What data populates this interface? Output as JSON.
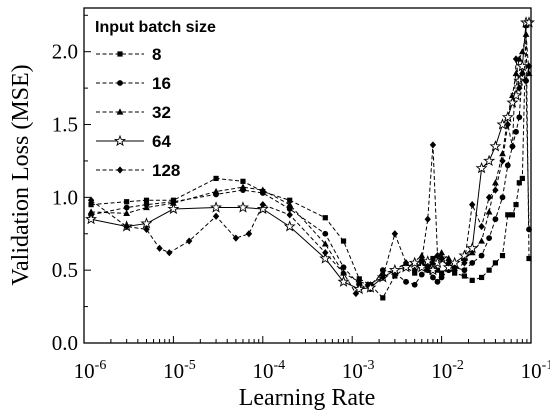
{
  "chart_data": {
    "type": "line",
    "title": "",
    "xlabel": "Learning Rate",
    "ylabel": "Validation Loss (MSE)",
    "xscale": "log",
    "xlim": [
      1e-06,
      0.1
    ],
    "ylim": [
      0.0,
      2.3
    ],
    "xticks": [
      {
        "base": "10",
        "exp": "-6"
      },
      {
        "base": "10",
        "exp": "-5"
      },
      {
        "base": "10",
        "exp": "-4"
      },
      {
        "base": "10",
        "exp": "-3"
      },
      {
        "base": "10",
        "exp": "-2"
      },
      {
        "base": "10",
        "exp": "-1"
      }
    ],
    "yticks": [
      "0.0",
      "0.5",
      "1.0",
      "1.5",
      "2.0"
    ],
    "grid": false,
    "legend": {
      "title": "Input batch size",
      "position": "top-left"
    },
    "series": [
      {
        "name": "8",
        "marker": "square",
        "line": "dashed",
        "x": [
          1.2e-06,
          3e-06,
          5e-06,
          1e-05,
          3e-05,
          6e-05,
          0.0001,
          0.0002,
          0.0005,
          0.0008,
          0.0012,
          0.0016,
          0.0022,
          0.003,
          0.004,
          0.005,
          0.006,
          0.007,
          0.008,
          0.009,
          0.01,
          0.012,
          0.014,
          0.018,
          0.022,
          0.028,
          0.034,
          0.04,
          0.048,
          0.055,
          0.062,
          0.068,
          0.074,
          0.08,
          0.088,
          0.095
        ],
        "y": [
          0.95,
          0.97,
          0.98,
          0.98,
          1.13,
          1.11,
          1.04,
          0.98,
          0.86,
          0.7,
          0.44,
          0.4,
          0.31,
          0.46,
          0.52,
          0.48,
          0.55,
          0.52,
          0.58,
          0.5,
          0.48,
          0.52,
          0.48,
          0.46,
          0.43,
          0.45,
          0.5,
          0.55,
          0.6,
          0.88,
          0.88,
          0.95,
          1.1,
          1.13,
          2.18,
          0.58
        ]
      },
      {
        "name": "16",
        "marker": "circle",
        "line": "dashed",
        "x": [
          1.2e-06,
          3e-06,
          5e-06,
          1e-05,
          3e-05,
          6e-05,
          0.0001,
          0.0002,
          0.0005,
          0.0008,
          0.0012,
          0.0016,
          0.0022,
          0.003,
          0.004,
          0.005,
          0.006,
          0.007,
          0.008,
          0.009,
          0.01,
          0.012,
          0.014,
          0.018,
          0.022,
          0.028,
          0.034,
          0.04,
          0.048,
          0.055,
          0.062,
          0.068,
          0.074,
          0.08,
          0.088,
          0.095
        ],
        "y": [
          0.88,
          0.93,
          0.95,
          0.97,
          1.02,
          1.05,
          1.03,
          0.92,
          0.75,
          0.52,
          0.4,
          0.37,
          0.5,
          0.48,
          0.42,
          0.4,
          0.47,
          0.5,
          0.45,
          0.42,
          0.45,
          0.5,
          0.52,
          0.5,
          0.55,
          0.6,
          0.72,
          0.85,
          1.0,
          1.22,
          1.35,
          1.45,
          1.55,
          1.9,
          1.8,
          0.78
        ]
      },
      {
        "name": "32",
        "marker": "triangle",
        "line": "dashed",
        "x": [
          1.2e-06,
          3e-06,
          5e-06,
          1e-05,
          3e-05,
          6e-05,
          0.0001,
          0.0002,
          0.0005,
          0.0008,
          0.0012,
          0.0016,
          0.0022,
          0.003,
          0.004,
          0.005,
          0.006,
          0.007,
          0.008,
          0.009,
          0.01,
          0.012,
          0.014,
          0.018,
          0.022,
          0.028,
          0.034,
          0.04,
          0.048,
          0.055,
          0.062,
          0.068,
          0.074,
          0.08,
          0.088,
          0.095
        ],
        "y": [
          0.9,
          0.89,
          0.93,
          0.96,
          1.04,
          1.07,
          1.05,
          0.95,
          0.68,
          0.48,
          0.42,
          0.4,
          0.48,
          0.5,
          0.55,
          0.56,
          0.6,
          0.52,
          0.55,
          0.6,
          0.62,
          0.58,
          0.54,
          0.58,
          0.62,
          0.7,
          0.9,
          1.1,
          1.3,
          1.55,
          1.7,
          1.85,
          1.95,
          2.0,
          2.12,
          1.85
        ]
      },
      {
        "name": "64",
        "marker": "star",
        "line": "solid",
        "x": [
          1.2e-06,
          3e-06,
          5e-06,
          1e-05,
          3e-05,
          6e-05,
          0.0001,
          0.0002,
          0.0005,
          0.0008,
          0.0012,
          0.0016,
          0.0022,
          0.003,
          0.004,
          0.005,
          0.006,
          0.007,
          0.008,
          0.009,
          0.01,
          0.012,
          0.014,
          0.018,
          0.022,
          0.028,
          0.034,
          0.04,
          0.048,
          0.055,
          0.062,
          0.068,
          0.074,
          0.08,
          0.088,
          0.095
        ],
        "y": [
          0.85,
          0.8,
          0.82,
          0.92,
          0.93,
          0.93,
          0.92,
          0.8,
          0.58,
          0.42,
          0.37,
          0.38,
          0.45,
          0.5,
          0.52,
          0.55,
          0.52,
          0.56,
          0.5,
          0.55,
          0.58,
          0.52,
          0.55,
          0.6,
          0.65,
          1.2,
          1.25,
          1.35,
          1.5,
          1.55,
          1.65,
          1.7,
          1.8,
          1.9,
          2.2,
          2.2
        ]
      },
      {
        "name": "128",
        "marker": "diamond",
        "line": "dashed",
        "x": [
          1.2e-06,
          3e-06,
          5e-06,
          7e-06,
          9e-06,
          1.5e-05,
          3e-05,
          5e-05,
          7e-05,
          0.0001,
          0.0002,
          0.0005,
          0.0008,
          0.0011,
          0.0015,
          0.0022,
          0.003,
          0.004,
          0.005,
          0.006,
          0.007,
          0.008,
          0.009,
          0.01,
          0.012,
          0.014,
          0.018,
          0.022,
          0.028,
          0.034,
          0.04,
          0.048,
          0.055,
          0.062,
          0.068,
          0.074,
          0.08,
          0.088,
          0.095
        ],
        "y": [
          0.98,
          0.8,
          0.78,
          0.65,
          0.62,
          0.7,
          0.87,
          0.72,
          0.75,
          0.95,
          0.88,
          0.62,
          0.48,
          0.34,
          0.4,
          0.45,
          0.75,
          0.55,
          0.5,
          0.57,
          0.85,
          1.36,
          0.6,
          0.58,
          0.55,
          0.5,
          0.55,
          0.95,
          0.8,
          1.0,
          1.05,
          1.25,
          1.5,
          1.35,
          1.95,
          1.75,
          1.85,
          1.8,
          1.9
        ]
      }
    ]
  }
}
